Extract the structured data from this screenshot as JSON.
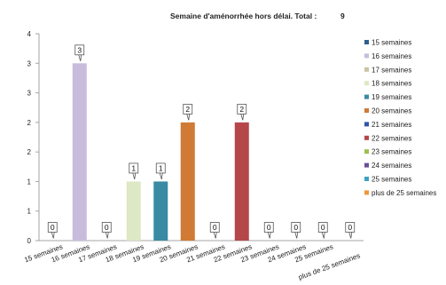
{
  "chart_data": {
    "type": "bar",
    "title": "Semaine d'aménorrhée hors délai. Total :",
    "total": "9",
    "categories": [
      "15 semaines",
      "16 semaines",
      "17 semaines",
      "18 semaines",
      "19 semaines",
      "20 semaines",
      "21 semaines",
      "22 semaines",
      "23 semaines",
      "24 semaines",
      "25 semaines",
      "plus de 25 semaines"
    ],
    "values": [
      0,
      3,
      0,
      1,
      1,
      2,
      0,
      2,
      0,
      0,
      0,
      0
    ],
    "y_tick_labels": [
      "0",
      "1",
      "1",
      "2",
      "2",
      "3",
      "3",
      "4"
    ],
    "ylim": [
      0,
      3.5
    ],
    "grid": false,
    "legend_position": "right",
    "colors": [
      "#2e5f8f",
      "#c8bcdc",
      "#c9c4a6",
      "#dde8c4",
      "#3a8aa4",
      "#d07a35",
      "#3354a8",
      "#b5474b",
      "#9fbf4f",
      "#6a4f96",
      "#3ba3c4",
      "#f0963a"
    ]
  }
}
